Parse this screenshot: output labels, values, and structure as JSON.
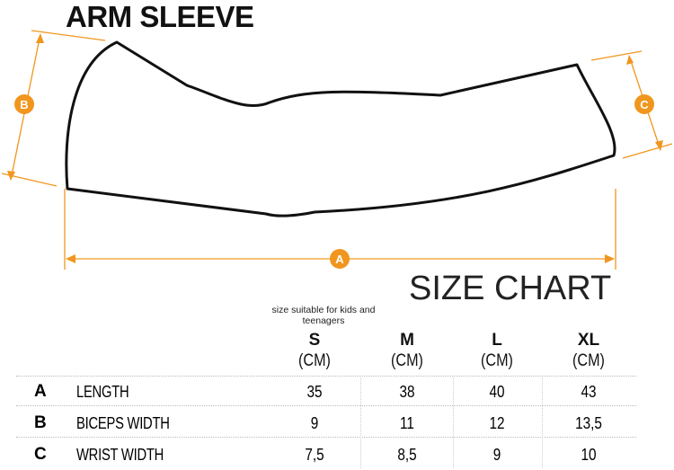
{
  "title": "ARM SLEEVE",
  "chart_title": "SIZE CHART",
  "note": "size suitable for kids and teenagers",
  "markers": {
    "a": "A",
    "b": "B",
    "c": "C"
  },
  "accent_color": "#f0961e",
  "unit": "(CM)",
  "sizes": [
    "S",
    "M",
    "L",
    "XL"
  ],
  "rows": [
    {
      "letter": "A",
      "label": "LENGTH",
      "values": [
        "35",
        "38",
        "40",
        "43"
      ]
    },
    {
      "letter": "B",
      "label": "BICEPS WIDTH",
      "values": [
        "9",
        "11",
        "12",
        "13,5"
      ]
    },
    {
      "letter": "C",
      "label": "WRIST WIDTH",
      "values": [
        "7,5",
        "8,5",
        "9",
        "10"
      ]
    }
  ]
}
